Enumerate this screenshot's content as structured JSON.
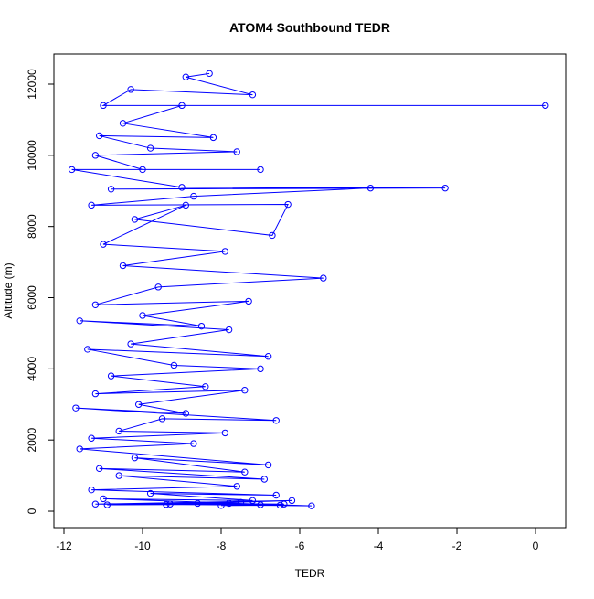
{
  "chart_data": {
    "type": "line",
    "title": "ATOM4 Southbound TEDR",
    "x_label": "TEDR",
    "y_label": "Altitude (m)",
    "color": "#0000ff",
    "markers": true,
    "x": [
      -8.3,
      -8.9,
      -7.2,
      -10.3,
      -11.0,
      0.25,
      -9.0,
      -10.5,
      -8.2,
      -11.1,
      -9.8,
      -7.6,
      -11.2,
      -10.0,
      -7.0,
      -11.8,
      -9.0,
      -2.3,
      -10.8,
      -4.2,
      -8.7,
      -11.3,
      -6.3,
      -6.7,
      -10.2,
      -8.9,
      -11.0,
      -7.9,
      -10.5,
      -5.4,
      -9.6,
      -11.2,
      -7.3,
      -10.0,
      -8.5,
      -11.6,
      -7.8,
      -10.3,
      -6.8,
      -11.4,
      -9.2,
      -7.0,
      -10.8,
      -8.4,
      -11.2,
      -7.4,
      -10.1,
      -8.9,
      -11.7,
      -6.6,
      -9.5,
      -10.6,
      -7.9,
      -11.3,
      -8.7,
      -11.6,
      -6.8,
      -10.2,
      -7.4,
      -11.1,
      -6.9,
      -10.6,
      -7.6,
      -11.3,
      -6.6,
      -9.8,
      -7.2,
      -11.0,
      -5.7,
      -9.3,
      -7.5,
      -10.9,
      -6.4,
      -8.6,
      -6.2,
      -11.2,
      -7.0,
      -8.0,
      -6.5,
      -9.4,
      -7.8
    ],
    "values": [
      12300,
      12200,
      11700,
      11850,
      11400,
      11400,
      11400,
      10900,
      10500,
      10550,
      10200,
      10100,
      10000,
      9600,
      9600,
      9600,
      9100,
      9080,
      9050,
      9080,
      8850,
      8600,
      8620,
      7750,
      8200,
      8600,
      7500,
      7300,
      6900,
      6550,
      6300,
      5800,
      5900,
      5500,
      5200,
      5350,
      5100,
      4700,
      4350,
      4550,
      4100,
      4000,
      3800,
      3500,
      3300,
      3400,
      3000,
      2750,
      2900,
      2550,
      2600,
      2250,
      2200,
      2050,
      1900,
      1750,
      1300,
      1500,
      1100,
      1200,
      900,
      1000,
      700,
      600,
      450,
      500,
      300,
      350,
      150,
      200,
      250,
      180,
      200,
      220,
      300,
      200,
      180,
      160,
      170,
      190,
      220
    ],
    "xlim": [
      -12.256,
      0.767
    ],
    "ylim": [
      -462,
      12848
    ],
    "xticks": [
      -12,
      -10,
      -8,
      -6,
      -4,
      -2,
      0
    ],
    "yticks": [
      0,
      2000,
      4000,
      6000,
      8000,
      10000,
      12000
    ]
  }
}
